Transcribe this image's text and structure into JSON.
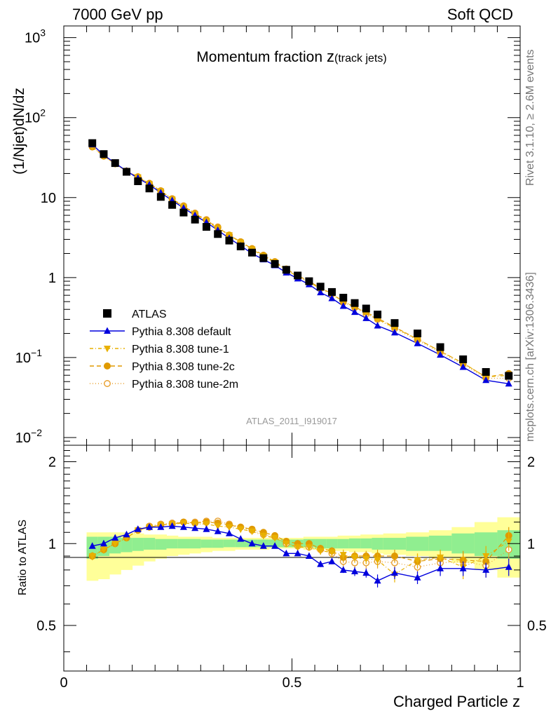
{
  "header": {
    "left": "7000 GeV pp",
    "right": "Soft QCD"
  },
  "side_labels": {
    "rivet": "Rivet 3.1.10, ≥ 2.6M events",
    "mcplots": "mcplots.cern.ch [arXiv:1306.3436]"
  },
  "colors": {
    "atlas": "#000000",
    "default": "#0000dd",
    "tune1": "#e8b000",
    "tune2c": "#e09a00",
    "tune2m": "#e8a030",
    "band_inner": "#90ee90",
    "band_outer": "#ffff99"
  },
  "chart_data": [
    {
      "type": "scatter",
      "title": "Momentum fraction",
      "title_math": "z",
      "title_sub": "(track jets)",
      "ylabel": "(1/Njet)dN/dz",
      "yscale": "log",
      "ylim": [
        0.008,
        1400
      ],
      "xlim": [
        0,
        1
      ],
      "y_ticks": [
        {
          "base": "10",
          "exp": "3",
          "value": 1000
        },
        {
          "base": "10",
          "exp": "2",
          "value": 100
        },
        {
          "base": "10",
          "exp": "",
          "value": 10
        },
        {
          "base": "1",
          "exp": "",
          "value": 1
        },
        {
          "base": "10",
          "exp": "−1",
          "value": 0.1
        },
        {
          "base": "10",
          "exp": "−2",
          "value": 0.01
        }
      ],
      "watermark": "ATLAS_2011_I919017",
      "legend": {
        "placement": "bottom-left",
        "entries": [
          "ATLAS",
          "Pythia 8.308 default",
          "Pythia 8.308 tune-1",
          "Pythia 8.308 tune-2c",
          "Pythia 8.308 tune-2m"
        ]
      },
      "x": [
        0.0625,
        0.0875,
        0.1125,
        0.1375,
        0.1625,
        0.1875,
        0.2125,
        0.2375,
        0.2625,
        0.2875,
        0.3125,
        0.3375,
        0.3625,
        0.3875,
        0.4125,
        0.4375,
        0.4625,
        0.4875,
        0.5125,
        0.5375,
        0.5625,
        0.5875,
        0.6125,
        0.6375,
        0.6625,
        0.6875,
        0.725,
        0.775,
        0.825,
        0.875,
        0.925,
        0.975
      ],
      "series": [
        {
          "name": "ATLAS",
          "values": [
            48,
            35,
            27,
            21,
            16,
            13,
            10.2,
            8.1,
            6.5,
            5.3,
            4.3,
            3.5,
            2.9,
            2.45,
            2.05,
            1.75,
            1.48,
            1.25,
            1.06,
            0.9,
            0.77,
            0.66,
            0.56,
            0.48,
            0.41,
            0.345,
            0.27,
            0.2,
            0.135,
            0.095,
            0.066,
            0.059
          ]
        },
        {
          "name": "Pythia 8.308 default",
          "values": [
            46,
            34,
            27,
            21.5,
            17.5,
            14.5,
            11.5,
            9.2,
            7.4,
            6.0,
            4.9,
            3.9,
            3.1,
            2.5,
            2.0,
            1.68,
            1.42,
            1.15,
            0.97,
            0.82,
            0.65,
            0.55,
            0.44,
            0.37,
            0.31,
            0.25,
            0.205,
            0.15,
            0.108,
            0.076,
            0.052,
            0.047
          ]
        },
        {
          "name": "Pythia 8.308 tune-1",
          "values": [
            43,
            33,
            26.5,
            21.3,
            18.0,
            14.8,
            12.0,
            9.5,
            7.7,
            6.2,
            5.1,
            4.1,
            3.4,
            2.75,
            2.25,
            1.86,
            1.55,
            1.25,
            1.03,
            0.88,
            0.72,
            0.61,
            0.51,
            0.43,
            0.36,
            0.3,
            0.235,
            0.17,
            0.12,
            0.085,
            0.057,
            0.06
          ]
        },
        {
          "name": "Pythia 8.308 tune-2c",
          "values": [
            43,
            33,
            26.5,
            21.5,
            18.2,
            15.0,
            12.1,
            9.6,
            7.8,
            6.3,
            5.2,
            4.2,
            3.4,
            2.8,
            2.3,
            1.9,
            1.58,
            1.28,
            1.06,
            0.9,
            0.74,
            0.63,
            0.5,
            0.43,
            0.37,
            0.31,
            0.24,
            0.17,
            0.12,
            0.085,
            0.057,
            0.063
          ]
        },
        {
          "name": "Pythia 8.308 tune-2m",
          "values": [
            43,
            33,
            26.5,
            21.5,
            18.2,
            15.1,
            12.2,
            9.7,
            7.9,
            6.4,
            5.3,
            4.3,
            3.4,
            2.8,
            2.3,
            1.9,
            1.57,
            1.26,
            1.04,
            0.88,
            0.73,
            0.62,
            0.49,
            0.42,
            0.35,
            0.3,
            0.23,
            0.165,
            0.115,
            0.082,
            0.055,
            0.055
          ]
        }
      ]
    },
    {
      "type": "scatter",
      "ylabel": "Ratio to ATLAS",
      "xlabel": "Charged Particle z",
      "ylim": [
        0.34,
        2.3
      ],
      "xlim": [
        0,
        1
      ],
      "y_tick_labels": [
        "2",
        "1",
        "0.5"
      ],
      "y_tick_values": [
        2,
        1,
        0.5
      ],
      "x_tick_labels": [
        "0",
        "0.5",
        "1"
      ],
      "x_tick_values": [
        0,
        0.5,
        1
      ],
      "band_x_edges": [
        0.05,
        0.075,
        0.1,
        0.125,
        0.15,
        0.175,
        0.2,
        0.225,
        0.25,
        0.275,
        0.3,
        0.325,
        0.35,
        0.375,
        0.4,
        0.425,
        0.45,
        0.475,
        0.5,
        0.525,
        0.55,
        0.575,
        0.6,
        0.625,
        0.65,
        0.675,
        0.7,
        0.75,
        0.8,
        0.85,
        0.9,
        0.95,
        1.0
      ],
      "band_inner_lo": [
        0.88,
        0.9,
        0.92,
        0.93,
        0.94,
        0.95,
        0.95,
        0.96,
        0.96,
        0.96,
        0.965,
        0.965,
        0.97,
        0.97,
        0.97,
        0.97,
        0.97,
        0.97,
        0.97,
        0.97,
        0.96,
        0.96,
        0.96,
        0.96,
        0.96,
        0.95,
        0.95,
        0.94,
        0.94,
        0.92,
        0.9,
        0.88
      ],
      "band_inner_hi": [
        1.06,
        1.06,
        1.06,
        1.05,
        1.05,
        1.05,
        1.04,
        1.04,
        1.04,
        1.04,
        1.035,
        1.035,
        1.035,
        1.035,
        1.035,
        1.035,
        1.035,
        1.035,
        1.035,
        1.04,
        1.04,
        1.04,
        1.04,
        1.045,
        1.045,
        1.05,
        1.05,
        1.06,
        1.07,
        1.09,
        1.1,
        1.12
      ],
      "band_outer_lo": [
        0.73,
        0.74,
        0.77,
        0.8,
        0.83,
        0.86,
        0.88,
        0.9,
        0.91,
        0.92,
        0.93,
        0.94,
        0.94,
        0.95,
        0.95,
        0.95,
        0.96,
        0.96,
        0.96,
        0.95,
        0.95,
        0.94,
        0.94,
        0.93,
        0.93,
        0.92,
        0.91,
        0.9,
        0.89,
        0.85,
        0.8,
        0.75
      ],
      "band_outer_hi": [
        1.1,
        1.1,
        1.1,
        1.1,
        1.09,
        1.08,
        1.08,
        1.07,
        1.06,
        1.06,
        1.06,
        1.05,
        1.05,
        1.05,
        1.05,
        1.05,
        1.05,
        1.05,
        1.05,
        1.06,
        1.06,
        1.06,
        1.07,
        1.07,
        1.08,
        1.08,
        1.09,
        1.1,
        1.12,
        1.15,
        1.2,
        1.25
      ],
      "series": [
        {
          "name": "Pythia 8.308 default",
          "values": [
            0.98,
            1.0,
            1.05,
            1.08,
            1.13,
            1.15,
            1.15,
            1.16,
            1.15,
            1.14,
            1.13,
            1.11,
            1.09,
            1.04,
            1.0,
            0.98,
            0.98,
            0.92,
            0.92,
            0.9,
            0.84,
            0.86,
            0.8,
            0.79,
            0.78,
            0.73,
            0.78,
            0.75,
            0.81,
            0.81,
            0.8,
            0.82
          ],
          "errors": [
            0.02,
            0.02,
            0.02,
            0.02,
            0.02,
            0.02,
            0.02,
            0.02,
            0.02,
            0.02,
            0.02,
            0.02,
            0.02,
            0.02,
            0.02,
            0.02,
            0.02,
            0.02,
            0.02,
            0.02,
            0.02,
            0.02,
            0.02,
            0.03,
            0.03,
            0.04,
            0.04,
            0.04,
            0.05,
            0.05,
            0.05,
            0.06
          ]
        },
        {
          "name": "Pythia 8.308 tune-1",
          "values": [
            0.9,
            0.95,
            1.0,
            1.05,
            1.12,
            1.15,
            1.17,
            1.18,
            1.19,
            1.18,
            1.18,
            1.16,
            1.15,
            1.13,
            1.11,
            1.07,
            1.05,
            1.0,
            0.97,
            0.97,
            0.94,
            0.93,
            0.91,
            0.89,
            0.88,
            0.87,
            0.77,
            0.87,
            0.89,
            0.82,
            0.9,
            1.02
          ],
          "errors": [
            0.03,
            0.03,
            0.03,
            0.03,
            0.03,
            0.03,
            0.03,
            0.03,
            0.03,
            0.03,
            0.03,
            0.03,
            0.03,
            0.03,
            0.03,
            0.03,
            0.03,
            0.03,
            0.03,
            0.03,
            0.03,
            0.03,
            0.04,
            0.04,
            0.04,
            0.05,
            0.05,
            0.05,
            0.06,
            0.08,
            0.08,
            0.08
          ]
        },
        {
          "name": "Pythia 8.308 tune-2c",
          "values": [
            0.9,
            0.95,
            1.0,
            1.05,
            1.12,
            1.15,
            1.17,
            1.18,
            1.2,
            1.19,
            1.2,
            1.19,
            1.17,
            1.15,
            1.13,
            1.1,
            1.07,
            1.02,
            1.0,
            1.0,
            0.96,
            0.94,
            0.89,
            0.9,
            0.9,
            0.9,
            0.9,
            0.86,
            0.88,
            0.87,
            0.86,
            1.07
          ],
          "errors": [
            0.03,
            0.03,
            0.03,
            0.03,
            0.03,
            0.03,
            0.03,
            0.03,
            0.03,
            0.03,
            0.03,
            0.03,
            0.03,
            0.03,
            0.03,
            0.03,
            0.03,
            0.03,
            0.03,
            0.03,
            0.03,
            0.03,
            0.04,
            0.04,
            0.04,
            0.05,
            0.05,
            0.05,
            0.06,
            0.07,
            0.08,
            0.08
          ]
        },
        {
          "name": "Pythia 8.308 tune-2m",
          "values": [
            0.9,
            0.95,
            1.0,
            1.05,
            1.12,
            1.16,
            1.18,
            1.19,
            1.2,
            1.2,
            1.21,
            1.21,
            1.18,
            1.15,
            1.12,
            1.08,
            1.06,
            1.0,
            0.98,
            0.97,
            0.95,
            0.92,
            0.86,
            0.85,
            0.85,
            0.86,
            0.85,
            0.82,
            0.85,
            0.86,
            0.83,
            0.95
          ],
          "errors": [
            0.03,
            0.03,
            0.03,
            0.03,
            0.03,
            0.03,
            0.03,
            0.03,
            0.03,
            0.03,
            0.03,
            0.03,
            0.03,
            0.03,
            0.03,
            0.03,
            0.03,
            0.03,
            0.03,
            0.03,
            0.03,
            0.03,
            0.04,
            0.04,
            0.04,
            0.05,
            0.05,
            0.05,
            0.06,
            0.07,
            0.08,
            0.08
          ]
        }
      ]
    }
  ]
}
